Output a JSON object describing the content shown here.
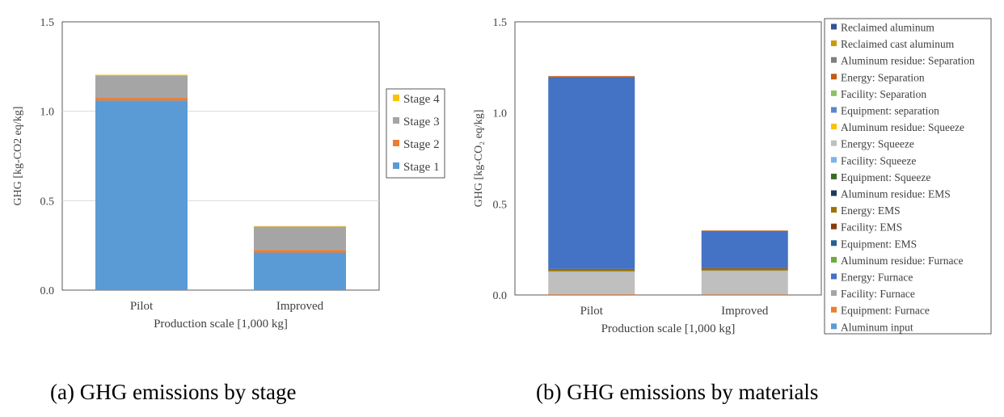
{
  "captions": {
    "a": "(a) GHG emissions by stage",
    "b": "(b) GHG emissions by materials"
  },
  "chart_data": [
    {
      "type": "bar",
      "stacked": true,
      "categories": [
        "Pilot",
        "Improved"
      ],
      "xlabel": "Production scale [1,000 kg]",
      "ylabel": "GHG [kg-CO2 eq/kg]",
      "ylim": [
        0,
        1.5
      ],
      "yticks": [
        "0.0",
        "0.5",
        "1.0",
        "1.5"
      ],
      "grid": true,
      "legend_position": "right",
      "series": [
        {
          "name": "Stage 1",
          "color": "#5B9BD5",
          "values": [
            1.06,
            0.21
          ]
        },
        {
          "name": "Stage 2",
          "color": "#ED7D31",
          "values": [
            0.015,
            0.015
          ]
        },
        {
          "name": "Stage 3",
          "color": "#A5A5A5",
          "values": [
            0.125,
            0.13
          ]
        },
        {
          "name": "Stage 4",
          "color": "#FFC000",
          "values": [
            0.004,
            0.003
          ]
        }
      ]
    },
    {
      "type": "bar",
      "stacked": true,
      "categories": [
        "Pilot",
        "Improved"
      ],
      "xlabel": "Production scale [1,000 kg]",
      "ylabel": "GHG [kg-CO₂ eq/kg]",
      "ylim": [
        0,
        1.5
      ],
      "yticks": [
        "0.0",
        "0.5",
        "1.0",
        "1.5"
      ],
      "grid": false,
      "legend_position": "right",
      "series": [
        {
          "name": "Reclaimed aluminum",
          "color": "#2F5597",
          "values": [
            0,
            0
          ]
        },
        {
          "name": "Reclaimed cast aluminum",
          "color": "#C99A06",
          "values": [
            0,
            0
          ]
        },
        {
          "name": "Aluminum residue: Separation",
          "color": "#7F7F7F",
          "values": [
            0,
            0
          ]
        },
        {
          "name": "Energy: Separation",
          "color": "#C55A11",
          "values": [
            0.003,
            0.002
          ]
        },
        {
          "name": "Facility: Separation",
          "color": "#8CC168",
          "values": [
            0,
            0
          ]
        },
        {
          "name": "Equipment: separation",
          "color": "#5B88C9",
          "values": [
            0,
            0
          ]
        },
        {
          "name": "Aluminum residue: Squeeze",
          "color": "#FFC000",
          "values": [
            0,
            0
          ]
        },
        {
          "name": "Energy: Squeeze",
          "color": "#BFBFBF",
          "values": [
            0.125,
            0.13
          ]
        },
        {
          "name": "Facility: Squeeze",
          "color": "#7FB2E5",
          "values": [
            0.002,
            0.002
          ]
        },
        {
          "name": "Equipment: Squeeze",
          "color": "#3A6B26",
          "values": [
            0,
            0
          ]
        },
        {
          "name": "Aluminum residue: EMS",
          "color": "#203864",
          "values": [
            0,
            0
          ]
        },
        {
          "name": "Energy: EMS",
          "color": "#9C7400",
          "values": [
            0.01,
            0.01
          ]
        },
        {
          "name": "Facility: EMS",
          "color": "#8B3A0F",
          "values": [
            0.003,
            0.003
          ]
        },
        {
          "name": "Equipment: EMS",
          "color": "#255E91",
          "values": [
            0,
            0
          ]
        },
        {
          "name": "Aluminum residue: Furnace",
          "color": "#6AAB3A",
          "values": [
            0,
            0
          ]
        },
        {
          "name": "Energy: Furnace",
          "color": "#4472C4",
          "values": [
            1.055,
            0.205
          ]
        },
        {
          "name": "Facility: Furnace",
          "color": "#A5A5A5",
          "values": [
            0,
            0
          ]
        },
        {
          "name": "Equipment: Furnace",
          "color": "#ED7D31",
          "values": [
            0.005,
            0.003
          ]
        },
        {
          "name": "Aluminum input",
          "color": "#5B9BD5",
          "values": [
            0,
            0
          ]
        }
      ]
    }
  ]
}
